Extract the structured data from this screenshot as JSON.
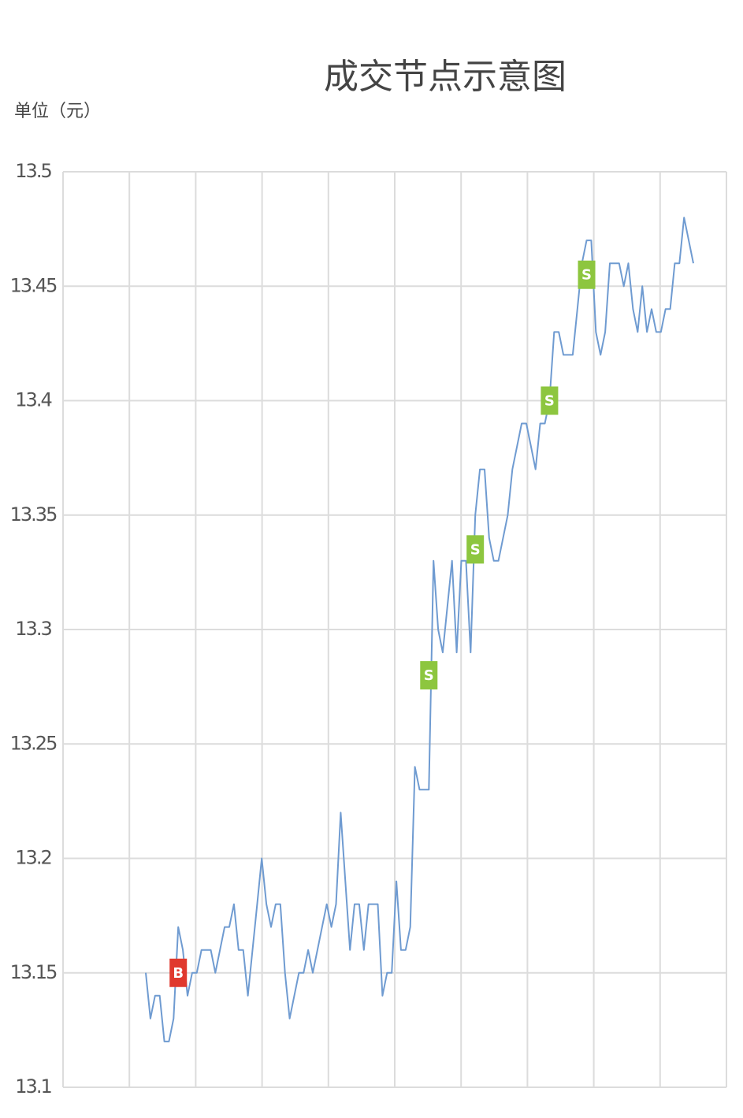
{
  "chart_data": {
    "type": "line",
    "title": "成交节点示意图",
    "y_label": "单位（元）",
    "ylim": [
      13.1,
      13.5
    ],
    "yticks": [
      13.1,
      13.15,
      13.2,
      13.25,
      13.3,
      13.35,
      13.4,
      13.45,
      13.5
    ],
    "grid": true,
    "color": "#6f9bd1",
    "values": [
      13.15,
      13.13,
      13.14,
      13.14,
      13.12,
      13.12,
      13.13,
      13.17,
      13.16,
      13.14,
      13.15,
      13.15,
      13.16,
      13.16,
      13.16,
      13.15,
      13.16,
      13.17,
      13.17,
      13.18,
      13.16,
      13.16,
      13.14,
      13.16,
      13.18,
      13.2,
      13.18,
      13.17,
      13.18,
      13.18,
      13.15,
      13.13,
      13.14,
      13.15,
      13.15,
      13.16,
      13.15,
      13.16,
      13.17,
      13.18,
      13.17,
      13.18,
      13.22,
      13.19,
      13.16,
      13.18,
      13.18,
      13.16,
      13.18,
      13.18,
      13.18,
      13.14,
      13.15,
      13.15,
      13.19,
      13.16,
      13.16,
      13.17,
      13.24,
      13.23,
      13.23,
      13.23,
      13.33,
      13.3,
      13.29,
      13.31,
      13.33,
      13.29,
      13.33,
      13.33,
      13.29,
      13.35,
      13.37,
      13.37,
      13.34,
      13.33,
      13.33,
      13.34,
      13.35,
      13.37,
      13.38,
      13.39,
      13.39,
      13.38,
      13.37,
      13.39,
      13.39,
      13.4,
      13.43,
      13.43,
      13.42,
      13.42,
      13.42,
      13.44,
      13.46,
      13.47,
      13.47,
      13.43,
      13.42,
      13.43,
      13.46,
      13.46,
      13.46,
      13.45,
      13.46,
      13.44,
      13.43,
      13.45,
      13.43,
      13.44,
      13.43,
      13.43,
      13.44,
      13.44,
      13.46,
      13.46,
      13.48,
      13.47,
      13.46
    ],
    "markers": [
      {
        "label": "B",
        "index": 7,
        "value": 13.15,
        "color": "#e0392e"
      },
      {
        "label": "S",
        "index": 61,
        "value": 13.28,
        "color": "#8dc63f"
      },
      {
        "label": "S",
        "index": 71,
        "value": 13.335,
        "color": "#8dc63f"
      },
      {
        "label": "S",
        "index": 87,
        "value": 13.4,
        "color": "#8dc63f"
      },
      {
        "label": "S",
        "index": 95,
        "value": 13.455,
        "color": "#8dc63f"
      }
    ]
  }
}
